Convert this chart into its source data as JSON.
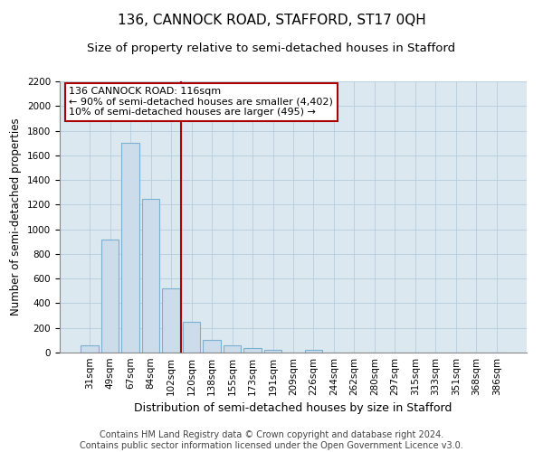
{
  "title": "136, CANNOCK ROAD, STAFFORD, ST17 0QH",
  "subtitle": "Size of property relative to semi-detached houses in Stafford",
  "xlabel": "Distribution of semi-detached houses by size in Stafford",
  "ylabel": "Number of semi-detached properties",
  "footer_line1": "Contains HM Land Registry data © Crown copyright and database right 2024.",
  "footer_line2": "Contains public sector information licensed under the Open Government Licence v3.0.",
  "bin_labels": [
    "31sqm",
    "49sqm",
    "67sqm",
    "84sqm",
    "102sqm",
    "120sqm",
    "138sqm",
    "155sqm",
    "173sqm",
    "191sqm",
    "209sqm",
    "226sqm",
    "244sqm",
    "262sqm",
    "280sqm",
    "297sqm",
    "315sqm",
    "333sqm",
    "351sqm",
    "368sqm",
    "386sqm"
  ],
  "bar_heights": [
    60,
    920,
    1700,
    1250,
    520,
    250,
    100,
    60,
    40,
    25,
    0,
    25,
    0,
    0,
    0,
    0,
    0,
    0,
    0,
    0,
    0
  ],
  "bar_color": "#ccdcea",
  "bar_edge_color": "#7ab0d0",
  "annotation_title": "136 CANNOCK ROAD: 116sqm",
  "annotation_line1": "← 90% of semi-detached houses are smaller (4,402)",
  "annotation_line2": "10% of semi-detached houses are larger (495) →",
  "annotation_box_color": "#ffffff",
  "annotation_box_edge_color": "#aa0000",
  "property_line_color": "#aa0000",
  "ylim": [
    0,
    2200
  ],
  "yticks": [
    0,
    200,
    400,
    600,
    800,
    1000,
    1200,
    1400,
    1600,
    1800,
    2000,
    2200
  ],
  "grid_color": "#b8ccdc",
  "bg_color": "#dce8f0",
  "title_fontsize": 11,
  "subtitle_fontsize": 9.5,
  "ylabel_fontsize": 8.5,
  "xlabel_fontsize": 9,
  "tick_fontsize": 7.5,
  "annotation_fontsize": 8,
  "footer_fontsize": 7
}
